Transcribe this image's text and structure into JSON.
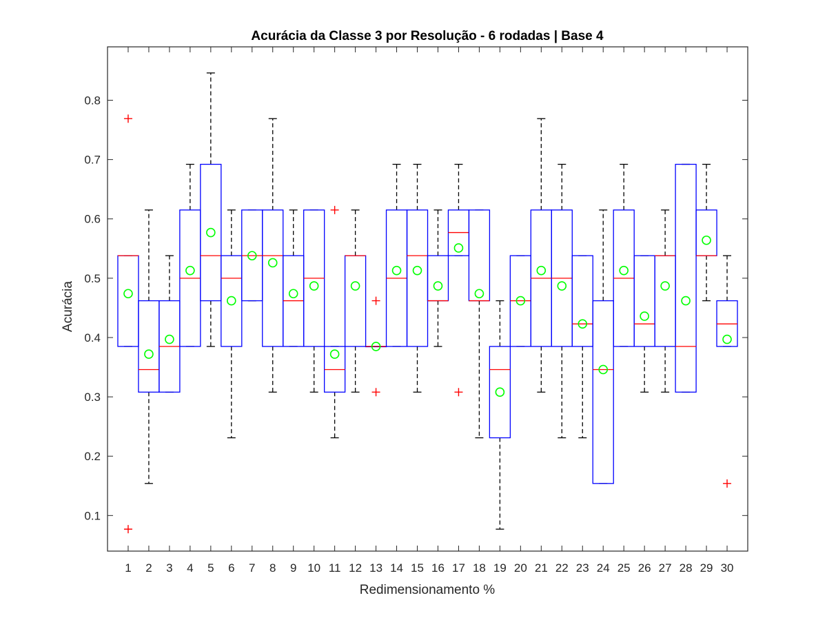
{
  "chart_data": {
    "type": "boxplot",
    "title": "Acurácia da Classe 3 por Resolução - 6 rodadas | Base 4",
    "xlabel": "Redimensionamento %",
    "ylabel": "Acurácia",
    "ylim": [
      0.04,
      0.89
    ],
    "yticks": [
      0.1,
      0.2,
      0.3,
      0.4,
      0.5,
      0.6,
      0.7,
      0.8
    ],
    "ytick_labels": [
      "0.1",
      "0.2",
      "0.3",
      "0.4",
      "0.5",
      "0.6",
      "0.7",
      "0.8"
    ],
    "grid": false,
    "colors": {
      "box": "#0000ff",
      "median": "#ff0000",
      "whisker": "#000000",
      "outlier": "#ff0000",
      "mean": "#00ff00",
      "axis": "#262626"
    },
    "categories": [
      "1",
      "2",
      "3",
      "4",
      "5",
      "6",
      "7",
      "8",
      "9",
      "10",
      "11",
      "12",
      "13",
      "14",
      "15",
      "16",
      "17",
      "18",
      "19",
      "20",
      "21",
      "22",
      "23",
      "24",
      "25",
      "26",
      "27",
      "28",
      "29",
      "30"
    ],
    "boxes": [
      {
        "q1": 0.385,
        "median": 0.538,
        "q3": 0.538,
        "whisker_low": 0.385,
        "whisker_high": 0.538,
        "mean": 0.474,
        "outliers": [
          0.769,
          0.077
        ]
      },
      {
        "q1": 0.308,
        "median": 0.346,
        "q3": 0.462,
        "whisker_low": 0.154,
        "whisker_high": 0.615,
        "mean": 0.372,
        "outliers": []
      },
      {
        "q1": 0.308,
        "median": 0.385,
        "q3": 0.462,
        "whisker_low": 0.308,
        "whisker_high": 0.538,
        "mean": 0.397,
        "outliers": []
      },
      {
        "q1": 0.385,
        "median": 0.5,
        "q3": 0.615,
        "whisker_low": 0.385,
        "whisker_high": 0.692,
        "mean": 0.513,
        "outliers": []
      },
      {
        "q1": 0.462,
        "median": 0.538,
        "q3": 0.692,
        "whisker_low": 0.385,
        "whisker_high": 0.846,
        "mean": 0.577,
        "outliers": []
      },
      {
        "q1": 0.385,
        "median": 0.5,
        "q3": 0.538,
        "whisker_low": 0.231,
        "whisker_high": 0.615,
        "mean": 0.462,
        "outliers": []
      },
      {
        "q1": 0.462,
        "median": 0.538,
        "q3": 0.615,
        "whisker_low": 0.462,
        "whisker_high": 0.615,
        "mean": 0.538,
        "outliers": []
      },
      {
        "q1": 0.385,
        "median": 0.538,
        "q3": 0.615,
        "whisker_low": 0.308,
        "whisker_high": 0.769,
        "mean": 0.526,
        "outliers": []
      },
      {
        "q1": 0.385,
        "median": 0.462,
        "q3": 0.538,
        "whisker_low": 0.385,
        "whisker_high": 0.615,
        "mean": 0.474,
        "outliers": []
      },
      {
        "q1": 0.385,
        "median": 0.5,
        "q3": 0.615,
        "whisker_low": 0.308,
        "whisker_high": 0.615,
        "mean": 0.487,
        "outliers": []
      },
      {
        "q1": 0.308,
        "median": 0.346,
        "q3": 0.385,
        "whisker_low": 0.231,
        "whisker_high": 0.385,
        "mean": 0.372,
        "outliers": [
          0.615
        ]
      },
      {
        "q1": 0.385,
        "median": 0.538,
        "q3": 0.538,
        "whisker_low": 0.308,
        "whisker_high": 0.615,
        "mean": 0.487,
        "outliers": []
      },
      {
        "q1": 0.385,
        "median": 0.385,
        "q3": 0.385,
        "whisker_low": 0.385,
        "whisker_high": 0.385,
        "mean": 0.385,
        "outliers": [
          0.462,
          0.308
        ]
      },
      {
        "q1": 0.385,
        "median": 0.5,
        "q3": 0.615,
        "whisker_low": 0.385,
        "whisker_high": 0.692,
        "mean": 0.513,
        "outliers": []
      },
      {
        "q1": 0.385,
        "median": 0.538,
        "q3": 0.615,
        "whisker_low": 0.308,
        "whisker_high": 0.692,
        "mean": 0.513,
        "outliers": []
      },
      {
        "q1": 0.462,
        "median": 0.462,
        "q3": 0.538,
        "whisker_low": 0.385,
        "whisker_high": 0.615,
        "mean": 0.487,
        "outliers": []
      },
      {
        "q1": 0.538,
        "median": 0.577,
        "q3": 0.615,
        "whisker_low": 0.538,
        "whisker_high": 0.692,
        "mean": 0.551,
        "outliers": [
          0.308
        ]
      },
      {
        "q1": 0.462,
        "median": 0.462,
        "q3": 0.615,
        "whisker_low": 0.231,
        "whisker_high": 0.615,
        "mean": 0.474,
        "outliers": []
      },
      {
        "q1": 0.231,
        "median": 0.346,
        "q3": 0.385,
        "whisker_low": 0.077,
        "whisker_high": 0.462,
        "mean": 0.308,
        "outliers": []
      },
      {
        "q1": 0.385,
        "median": 0.462,
        "q3": 0.538,
        "whisker_low": 0.385,
        "whisker_high": 0.538,
        "mean": 0.462,
        "outliers": []
      },
      {
        "q1": 0.385,
        "median": 0.5,
        "q3": 0.615,
        "whisker_low": 0.308,
        "whisker_high": 0.769,
        "mean": 0.513,
        "outliers": []
      },
      {
        "q1": 0.385,
        "median": 0.5,
        "q3": 0.615,
        "whisker_low": 0.231,
        "whisker_high": 0.692,
        "mean": 0.487,
        "outliers": []
      },
      {
        "q1": 0.385,
        "median": 0.423,
        "q3": 0.538,
        "whisker_low": 0.231,
        "whisker_high": 0.538,
        "mean": 0.423,
        "outliers": []
      },
      {
        "q1": 0.154,
        "median": 0.346,
        "q3": 0.462,
        "whisker_low": 0.154,
        "whisker_high": 0.615,
        "mean": 0.346,
        "outliers": []
      },
      {
        "q1": 0.385,
        "median": 0.5,
        "q3": 0.615,
        "whisker_low": 0.385,
        "whisker_high": 0.692,
        "mean": 0.513,
        "outliers": []
      },
      {
        "q1": 0.385,
        "median": 0.423,
        "q3": 0.538,
        "whisker_low": 0.308,
        "whisker_high": 0.538,
        "mean": 0.436,
        "outliers": []
      },
      {
        "q1": 0.385,
        "median": 0.538,
        "q3": 0.538,
        "whisker_low": 0.308,
        "whisker_high": 0.615,
        "mean": 0.487,
        "outliers": []
      },
      {
        "q1": 0.308,
        "median": 0.385,
        "q3": 0.692,
        "whisker_low": 0.308,
        "whisker_high": 0.692,
        "mean": 0.462,
        "outliers": []
      },
      {
        "q1": 0.538,
        "median": 0.538,
        "q3": 0.615,
        "whisker_low": 0.462,
        "whisker_high": 0.692,
        "mean": 0.564,
        "outliers": []
      },
      {
        "q1": 0.385,
        "median": 0.423,
        "q3": 0.462,
        "whisker_low": 0.385,
        "whisker_high": 0.538,
        "mean": 0.397,
        "outliers": [
          0.154
        ]
      }
    ]
  }
}
